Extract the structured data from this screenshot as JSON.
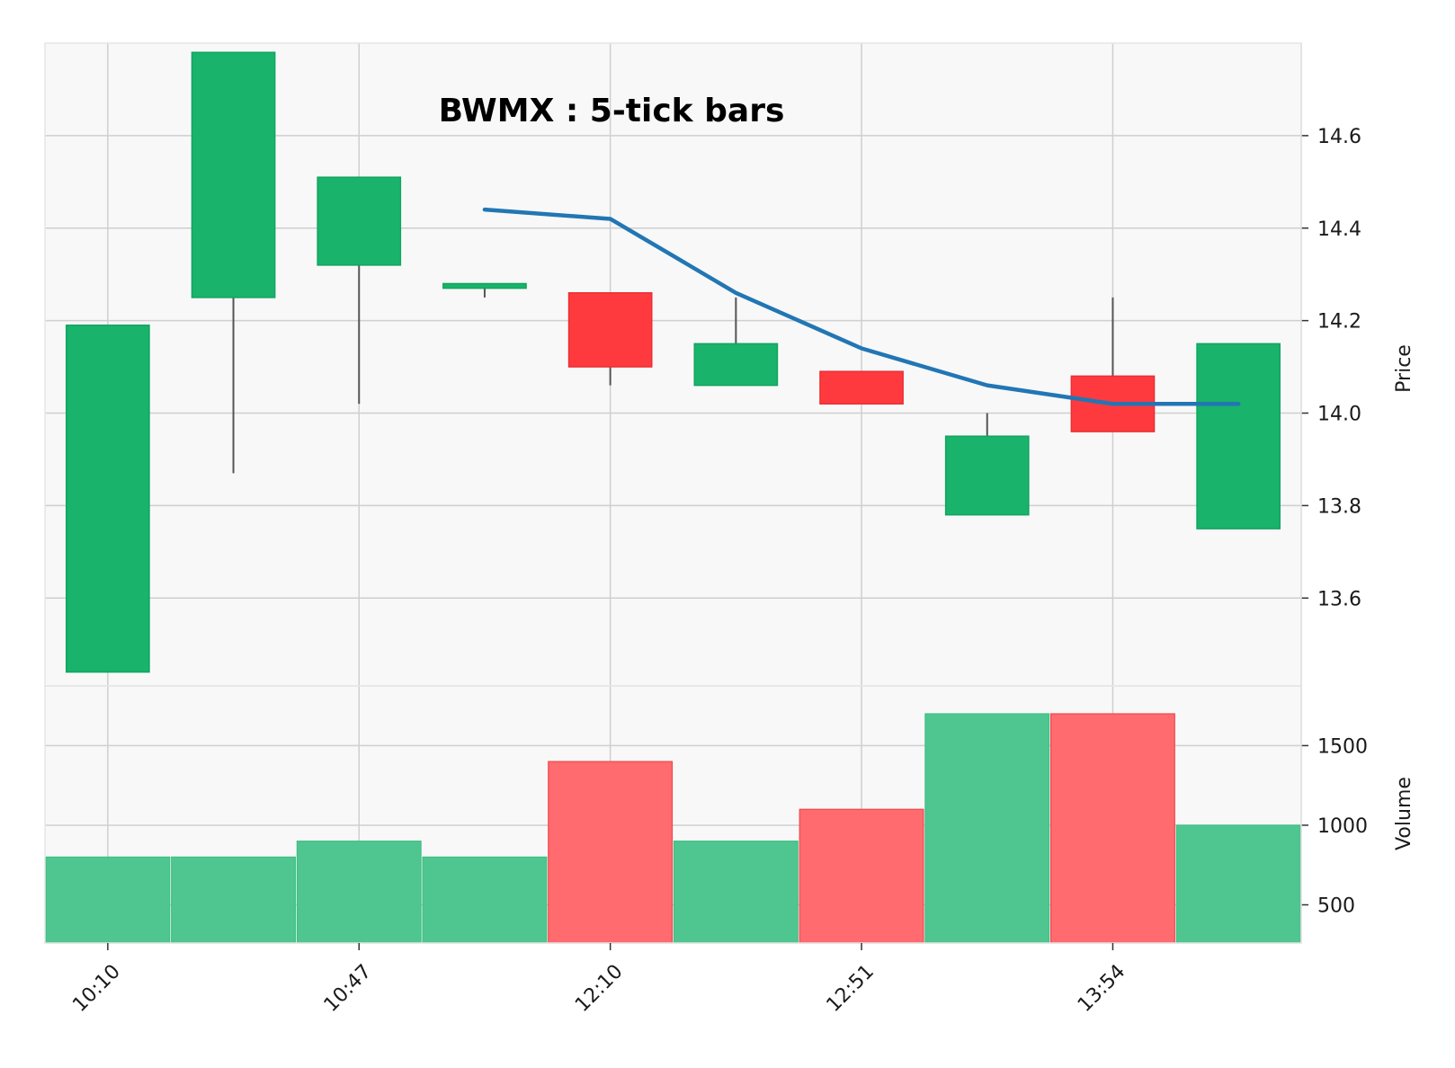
{
  "chart_data": {
    "type": "candlestick",
    "title": "BWMX : 5-tick bars",
    "price_label": "Price",
    "volume_label": "Volume",
    "x_tick_labels": [
      "10:10",
      "10:47",
      "12:10",
      "12:51",
      "13:54"
    ],
    "x_tick_bar_index": [
      0,
      2,
      4,
      6,
      8
    ],
    "price_ticks": [
      "13.6",
      "13.8",
      "14.0",
      "14.2",
      "14.4",
      "14.6"
    ],
    "volume_ticks": [
      "500",
      "1000",
      "1500"
    ],
    "price_ylim": [
      13.41,
      14.8
    ],
    "volume_ylim": [
      260,
      1875
    ],
    "colors": {
      "up": "#19b36b",
      "down": "#ff3a3e",
      "up_volume": "#4fc690",
      "down_volume": "#ff6b6e",
      "wick": "#555555",
      "moving_average": "#2276b4",
      "plot_background": "#f8f8f8",
      "grid": "#cfcfcf"
    },
    "bars": [
      {
        "open": 13.44,
        "high": 14.19,
        "low": 13.44,
        "close": 14.19,
        "volume": 800
      },
      {
        "open": 14.25,
        "high": 14.78,
        "low": 13.87,
        "close": 14.78,
        "volume": 800
      },
      {
        "open": 14.32,
        "high": 14.51,
        "low": 14.02,
        "close": 14.51,
        "volume": 900
      },
      {
        "open": 14.27,
        "high": 14.28,
        "low": 14.25,
        "close": 14.28,
        "volume": 800
      },
      {
        "open": 14.26,
        "high": 14.26,
        "low": 14.06,
        "close": 14.1,
        "volume": 1400
      },
      {
        "open": 14.06,
        "high": 14.25,
        "low": 14.06,
        "close": 14.15,
        "volume": 900
      },
      {
        "open": 14.09,
        "high": 14.09,
        "low": 14.02,
        "close": 14.02,
        "volume": 1100
      },
      {
        "open": 13.78,
        "high": 14.0,
        "low": 13.78,
        "close": 13.95,
        "volume": 1700
      },
      {
        "open": 14.08,
        "high": 14.25,
        "low": 13.96,
        "close": 13.96,
        "volume": 1700
      },
      {
        "open": 13.75,
        "high": 14.15,
        "low": 13.75,
        "close": 14.15,
        "volume": 1000
      }
    ],
    "moving_average": {
      "start_index": 3,
      "values": [
        14.44,
        14.42,
        14.26,
        14.14,
        14.06,
        14.02,
        14.02
      ]
    }
  }
}
